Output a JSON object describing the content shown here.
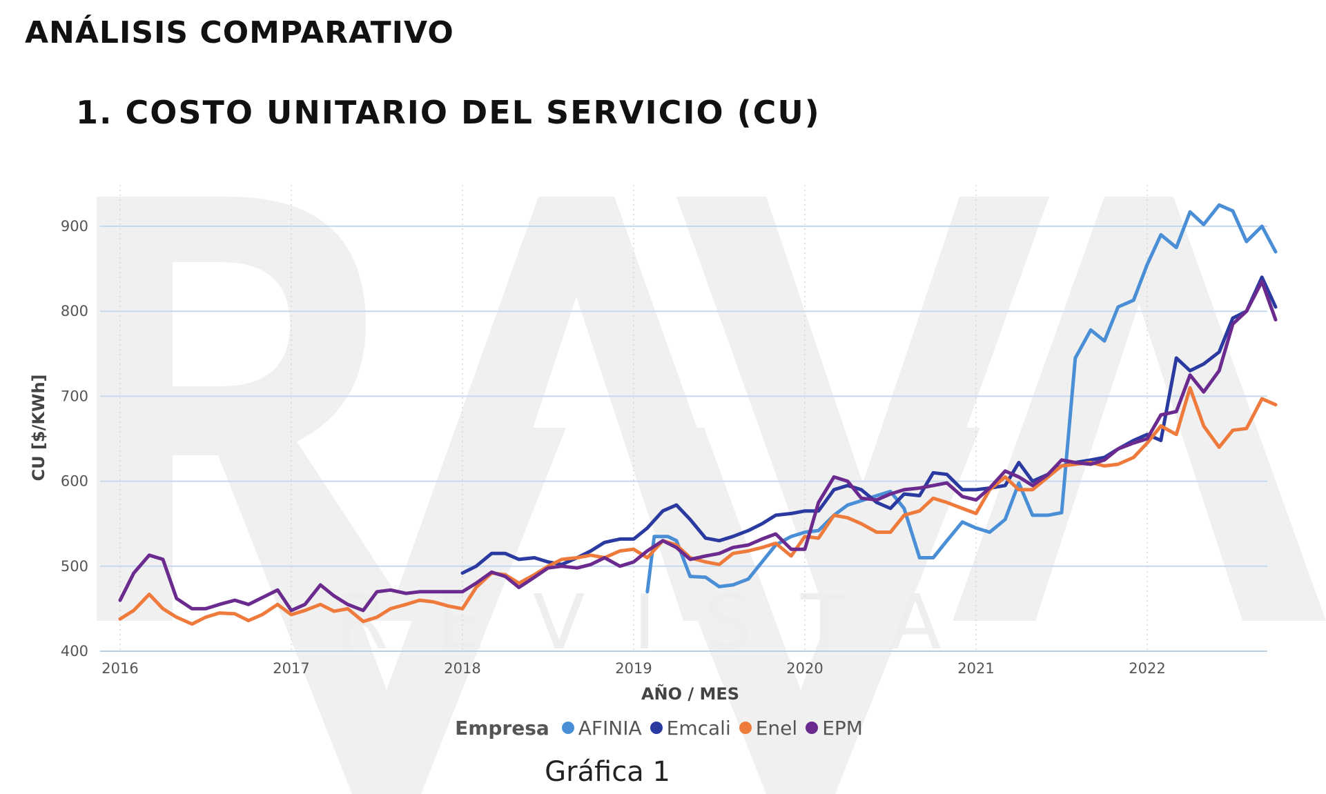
{
  "header": {
    "section_title": "ANÁLISIS COMPARATIVO",
    "chart_heading": "1. COSTO UNITARIO DEL SERVICIO (CU)"
  },
  "caption": "Gráfica 1",
  "watermark": {
    "subtitle": "REVISTA"
  },
  "legend": {
    "title": "Empresa"
  },
  "chart_data": {
    "type": "line",
    "xlabel": "AÑO / MES",
    "ylabel": "CU [$/KWh]",
    "xlim": [
      2016,
      2022.7
    ],
    "ylim": [
      400,
      950
    ],
    "x_ticks": [
      2016,
      2017,
      2018,
      2019,
      2020,
      2021,
      2022
    ],
    "y_ticks": [
      400,
      500,
      600,
      700,
      800,
      900
    ],
    "grid": "horizontal",
    "legend_position": "bottom",
    "series": [
      {
        "name": "AFINIA",
        "color": "#4a8fd6",
        "points": [
          [
            2019.08,
            470
          ],
          [
            2019.12,
            535
          ],
          [
            2019.2,
            535
          ],
          [
            2019.25,
            530
          ],
          [
            2019.33,
            488
          ],
          [
            2019.42,
            487
          ],
          [
            2019.5,
            476
          ],
          [
            2019.58,
            478
          ],
          [
            2019.67,
            485
          ],
          [
            2019.75,
            505
          ],
          [
            2019.83,
            525
          ],
          [
            2019.92,
            535
          ],
          [
            2020.0,
            540
          ],
          [
            2020.08,
            542
          ],
          [
            2020.17,
            560
          ],
          [
            2020.25,
            572
          ],
          [
            2020.33,
            577
          ],
          [
            2020.42,
            583
          ],
          [
            2020.5,
            588
          ],
          [
            2020.58,
            568
          ],
          [
            2020.67,
            510
          ],
          [
            2020.75,
            510
          ],
          [
            2020.83,
            530
          ],
          [
            2020.92,
            552
          ],
          [
            2021.0,
            545
          ],
          [
            2021.08,
            540
          ],
          [
            2021.17,
            555
          ],
          [
            2021.25,
            598
          ],
          [
            2021.33,
            560
          ],
          [
            2021.42,
            560
          ],
          [
            2021.5,
            563
          ],
          [
            2021.58,
            745
          ],
          [
            2021.67,
            778
          ],
          [
            2021.75,
            765
          ],
          [
            2021.83,
            805
          ],
          [
            2021.92,
            813
          ],
          [
            2022.0,
            855
          ],
          [
            2022.08,
            890
          ],
          [
            2022.17,
            875
          ],
          [
            2022.25,
            917
          ],
          [
            2022.33,
            902
          ],
          [
            2022.42,
            925
          ],
          [
            2022.5,
            918
          ],
          [
            2022.58,
            882
          ],
          [
            2022.67,
            900
          ],
          [
            2022.75,
            870
          ]
        ]
      },
      {
        "name": "Emcali",
        "color": "#2b3aa0",
        "points": [
          [
            2018.0,
            492
          ],
          [
            2018.08,
            500
          ],
          [
            2018.17,
            515
          ],
          [
            2018.25,
            515
          ],
          [
            2018.33,
            508
          ],
          [
            2018.42,
            510
          ],
          [
            2018.5,
            505
          ],
          [
            2018.58,
            502
          ],
          [
            2018.67,
            510
          ],
          [
            2018.75,
            518
          ],
          [
            2018.83,
            528
          ],
          [
            2018.92,
            532
          ],
          [
            2019.0,
            532
          ],
          [
            2019.08,
            545
          ],
          [
            2019.17,
            565
          ],
          [
            2019.25,
            572
          ],
          [
            2019.33,
            555
          ],
          [
            2019.42,
            533
          ],
          [
            2019.5,
            530
          ],
          [
            2019.58,
            535
          ],
          [
            2019.67,
            542
          ],
          [
            2019.75,
            550
          ],
          [
            2019.83,
            560
          ],
          [
            2019.92,
            562
          ],
          [
            2020.0,
            565
          ],
          [
            2020.08,
            565
          ],
          [
            2020.17,
            590
          ],
          [
            2020.25,
            595
          ],
          [
            2020.33,
            590
          ],
          [
            2020.42,
            575
          ],
          [
            2020.5,
            568
          ],
          [
            2020.58,
            585
          ],
          [
            2020.67,
            583
          ],
          [
            2020.75,
            610
          ],
          [
            2020.83,
            608
          ],
          [
            2020.92,
            590
          ],
          [
            2021.0,
            590
          ],
          [
            2021.08,
            592
          ],
          [
            2021.17,
            595
          ],
          [
            2021.25,
            622
          ],
          [
            2021.33,
            600
          ],
          [
            2021.42,
            608
          ],
          [
            2021.5,
            618
          ],
          [
            2021.58,
            622
          ],
          [
            2021.67,
            625
          ],
          [
            2021.75,
            628
          ],
          [
            2021.83,
            638
          ],
          [
            2021.92,
            648
          ],
          [
            2022.0,
            655
          ],
          [
            2022.08,
            648
          ],
          [
            2022.17,
            745
          ],
          [
            2022.25,
            730
          ],
          [
            2022.33,
            738
          ],
          [
            2022.42,
            752
          ],
          [
            2022.5,
            792
          ],
          [
            2022.58,
            800
          ],
          [
            2022.67,
            840
          ],
          [
            2022.75,
            805
          ]
        ]
      },
      {
        "name": "Enel",
        "color": "#ee7a3c",
        "points": [
          [
            2016.0,
            438
          ],
          [
            2016.08,
            448
          ],
          [
            2016.17,
            467
          ],
          [
            2016.25,
            450
          ],
          [
            2016.33,
            440
          ],
          [
            2016.42,
            432
          ],
          [
            2016.5,
            440
          ],
          [
            2016.58,
            445
          ],
          [
            2016.67,
            444
          ],
          [
            2016.75,
            436
          ],
          [
            2016.83,
            443
          ],
          [
            2016.92,
            455
          ],
          [
            2017.0,
            443
          ],
          [
            2017.08,
            448
          ],
          [
            2017.17,
            455
          ],
          [
            2017.25,
            447
          ],
          [
            2017.33,
            450
          ],
          [
            2017.42,
            435
          ],
          [
            2017.5,
            440
          ],
          [
            2017.58,
            450
          ],
          [
            2017.67,
            455
          ],
          [
            2017.75,
            460
          ],
          [
            2017.83,
            458
          ],
          [
            2017.92,
            453
          ],
          [
            2018.0,
            450
          ],
          [
            2018.08,
            475
          ],
          [
            2018.17,
            492
          ],
          [
            2018.25,
            490
          ],
          [
            2018.33,
            480
          ],
          [
            2018.42,
            490
          ],
          [
            2018.5,
            500
          ],
          [
            2018.58,
            508
          ],
          [
            2018.67,
            510
          ],
          [
            2018.75,
            513
          ],
          [
            2018.83,
            510
          ],
          [
            2018.92,
            518
          ],
          [
            2019.0,
            520
          ],
          [
            2019.08,
            510
          ],
          [
            2019.17,
            530
          ],
          [
            2019.25,
            525
          ],
          [
            2019.33,
            510
          ],
          [
            2019.42,
            505
          ],
          [
            2019.5,
            502
          ],
          [
            2019.58,
            515
          ],
          [
            2019.67,
            518
          ],
          [
            2019.75,
            522
          ],
          [
            2019.83,
            527
          ],
          [
            2019.92,
            512
          ],
          [
            2020.0,
            535
          ],
          [
            2020.08,
            533
          ],
          [
            2020.17,
            560
          ],
          [
            2020.25,
            557
          ],
          [
            2020.33,
            550
          ],
          [
            2020.42,
            540
          ],
          [
            2020.5,
            540
          ],
          [
            2020.58,
            560
          ],
          [
            2020.67,
            565
          ],
          [
            2020.75,
            580
          ],
          [
            2020.83,
            575
          ],
          [
            2020.92,
            568
          ],
          [
            2021.0,
            562
          ],
          [
            2021.08,
            590
          ],
          [
            2021.17,
            605
          ],
          [
            2021.25,
            590
          ],
          [
            2021.33,
            590
          ],
          [
            2021.42,
            605
          ],
          [
            2021.5,
            618
          ],
          [
            2021.58,
            620
          ],
          [
            2021.67,
            622
          ],
          [
            2021.75,
            618
          ],
          [
            2021.83,
            620
          ],
          [
            2021.92,
            628
          ],
          [
            2022.0,
            645
          ],
          [
            2022.08,
            665
          ],
          [
            2022.17,
            655
          ],
          [
            2022.25,
            710
          ],
          [
            2022.33,
            665
          ],
          [
            2022.42,
            640
          ],
          [
            2022.5,
            660
          ],
          [
            2022.58,
            662
          ],
          [
            2022.67,
            697
          ],
          [
            2022.75,
            690
          ]
        ]
      },
      {
        "name": "EPM",
        "color": "#6b2a8e",
        "points": [
          [
            2016.0,
            460
          ],
          [
            2016.08,
            492
          ],
          [
            2016.17,
            513
          ],
          [
            2016.25,
            508
          ],
          [
            2016.33,
            462
          ],
          [
            2016.42,
            450
          ],
          [
            2016.5,
            450
          ],
          [
            2016.58,
            455
          ],
          [
            2016.67,
            460
          ],
          [
            2016.75,
            455
          ],
          [
            2016.83,
            463
          ],
          [
            2016.92,
            472
          ],
          [
            2017.0,
            448
          ],
          [
            2017.08,
            455
          ],
          [
            2017.17,
            478
          ],
          [
            2017.25,
            465
          ],
          [
            2017.33,
            455
          ],
          [
            2017.42,
            448
          ],
          [
            2017.5,
            470
          ],
          [
            2017.58,
            472
          ],
          [
            2017.67,
            468
          ],
          [
            2017.75,
            470
          ],
          [
            2017.83,
            470
          ],
          [
            2017.92,
            470
          ],
          [
            2018.0,
            470
          ],
          [
            2018.08,
            480
          ],
          [
            2018.17,
            493
          ],
          [
            2018.25,
            488
          ],
          [
            2018.33,
            475
          ],
          [
            2018.42,
            487
          ],
          [
            2018.5,
            498
          ],
          [
            2018.58,
            500
          ],
          [
            2018.67,
            498
          ],
          [
            2018.75,
            502
          ],
          [
            2018.83,
            510
          ],
          [
            2018.92,
            500
          ],
          [
            2019.0,
            505
          ],
          [
            2019.08,
            518
          ],
          [
            2019.17,
            530
          ],
          [
            2019.25,
            522
          ],
          [
            2019.33,
            508
          ],
          [
            2019.42,
            512
          ],
          [
            2019.5,
            515
          ],
          [
            2019.58,
            522
          ],
          [
            2019.67,
            525
          ],
          [
            2019.75,
            532
          ],
          [
            2019.83,
            538
          ],
          [
            2019.92,
            520
          ],
          [
            2020.0,
            520
          ],
          [
            2020.08,
            575
          ],
          [
            2020.17,
            605
          ],
          [
            2020.25,
            600
          ],
          [
            2020.33,
            580
          ],
          [
            2020.42,
            578
          ],
          [
            2020.5,
            585
          ],
          [
            2020.58,
            590
          ],
          [
            2020.67,
            592
          ],
          [
            2020.75,
            595
          ],
          [
            2020.83,
            598
          ],
          [
            2020.92,
            582
          ],
          [
            2021.0,
            578
          ],
          [
            2021.08,
            592
          ],
          [
            2021.17,
            612
          ],
          [
            2021.25,
            605
          ],
          [
            2021.33,
            595
          ],
          [
            2021.42,
            608
          ],
          [
            2021.5,
            625
          ],
          [
            2021.58,
            622
          ],
          [
            2021.67,
            620
          ],
          [
            2021.75,
            625
          ],
          [
            2021.83,
            638
          ],
          [
            2021.92,
            645
          ],
          [
            2022.0,
            650
          ],
          [
            2022.08,
            678
          ],
          [
            2022.17,
            682
          ],
          [
            2022.25,
            725
          ],
          [
            2022.33,
            705
          ],
          [
            2022.42,
            730
          ],
          [
            2022.5,
            785
          ],
          [
            2022.58,
            800
          ],
          [
            2022.67,
            835
          ],
          [
            2022.75,
            790
          ]
        ]
      }
    ]
  }
}
